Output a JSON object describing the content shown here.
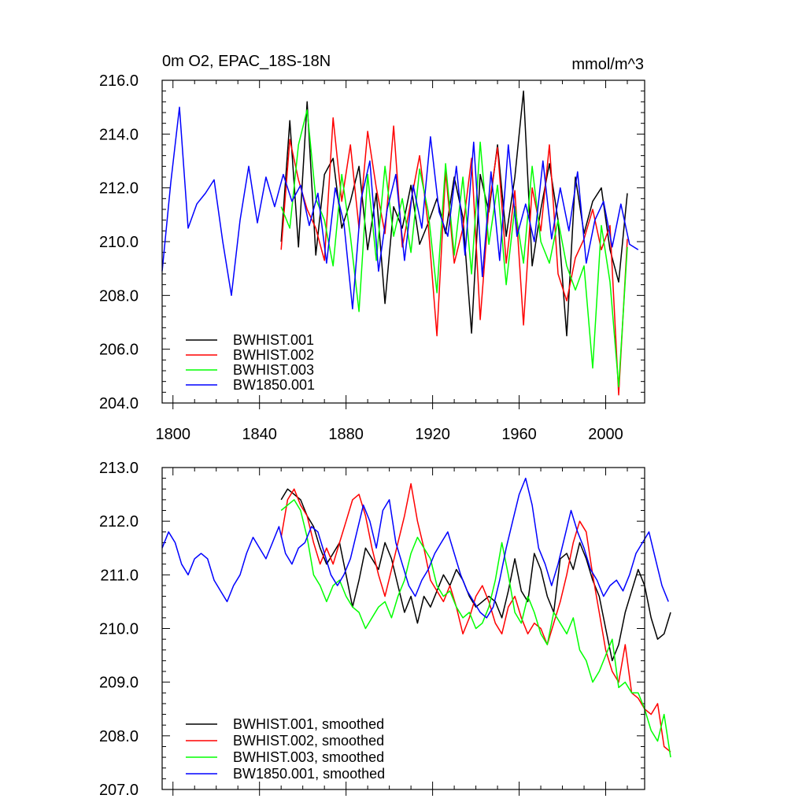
{
  "chart_data": [
    {
      "type": "line",
      "title": "0m O2, EPAC_18S-18N",
      "units_label": "mmol/m^3",
      "xlim": [
        1795,
        2018
      ],
      "ylim": [
        204,
        216
      ],
      "x_ticks": [
        1800,
        1840,
        1880,
        1920,
        1960,
        2000
      ],
      "x_tick_labels": [
        "1800",
        "1840",
        "1880",
        "1920",
        "1960",
        "2000"
      ],
      "y_ticks": [
        204,
        206,
        208,
        210,
        212,
        214,
        216
      ],
      "y_tick_labels": [
        "204.0",
        "206.0",
        "208.0",
        "210.0",
        "212.0",
        "214.0",
        "216.0"
      ],
      "legend_position": "bottom-left",
      "series": [
        {
          "name": "BWHIST.001",
          "color": "#000000",
          "x_start": 1850,
          "x_step": 4,
          "values": [
            210.0,
            214.5,
            209.8,
            215.2,
            209.5,
            212.5,
            213.1,
            210.5,
            211.5,
            212.8,
            209.7,
            211.8,
            207.7,
            211.3,
            210.5,
            212.1,
            209.9,
            210.7,
            211.6,
            210.3,
            212.4,
            210.9,
            206.6,
            212.5,
            211.1,
            213.6,
            210.2,
            212.4,
            215.6,
            209.1,
            211.2,
            212.9,
            210.8,
            206.5,
            212.4,
            210.3,
            211.5,
            212.0,
            209.7,
            208.5,
            211.8
          ]
        },
        {
          "name": "BWHIST.002",
          "color": "#ff0000",
          "x_start": 1850,
          "x_step": 4,
          "values": [
            209.7,
            213.8,
            212.3,
            211.2,
            210.5,
            209.3,
            214.6,
            211.5,
            213.6,
            210.5,
            214.1,
            212.0,
            210.3,
            214.3,
            209.8,
            211.5,
            213.2,
            210.6,
            206.5,
            212.6,
            209.2,
            210.5,
            213.1,
            207.1,
            211.3,
            213.5,
            209.2,
            211.9,
            206.9,
            212.0,
            210.4,
            213.6,
            208.8,
            207.8,
            209.4,
            210.1,
            211.2,
            209.7,
            210.6,
            204.3,
            210.1
          ]
        },
        {
          "name": "BWHIST.003",
          "color": "#00ff00",
          "x_start": 1850,
          "x_step": 4,
          "values": [
            211.3,
            210.5,
            213.6,
            214.9,
            211.6,
            210.8,
            209.1,
            212.5,
            210.2,
            207.4,
            212.5,
            209.3,
            212.8,
            210.2,
            211.6,
            209.6,
            212.7,
            211.1,
            208.1,
            212.9,
            209.5,
            212.4,
            208.8,
            213.7,
            209.9,
            212.1,
            208.4,
            211.3,
            209.2,
            212.8,
            210.0,
            209.2,
            210.8,
            209.1,
            208.2,
            209.1,
            205.3,
            210.6,
            208.5,
            204.6,
            209.8
          ]
        },
        {
          "name": "BW1850.001",
          "color": "#0000ff",
          "x_start": 1795,
          "x_step": 4,
          "values": [
            208.9,
            212.2,
            215.0,
            210.5,
            211.4,
            211.8,
            212.3,
            210.0,
            208.0,
            210.8,
            212.8,
            210.7,
            212.4,
            211.3,
            212.5,
            211.5,
            212.1,
            210.6,
            211.8,
            209.2,
            212.0,
            210.7,
            207.5,
            211.6,
            213.0,
            208.9,
            211.2,
            212.5,
            209.3,
            212.1,
            210.5,
            213.9,
            211.1,
            210.2,
            212.8,
            209.5,
            213.7,
            208.7,
            212.6,
            209.3,
            213.6,
            210.2,
            211.4,
            210.0,
            213.0,
            210.1,
            212.0,
            210.4,
            212.6,
            209.2,
            210.8,
            211.5,
            209.8,
            211.4,
            209.9,
            209.7
          ]
        }
      ]
    },
    {
      "type": "line",
      "title": "",
      "xlim": [
        1795,
        2018
      ],
      "ylim": [
        207,
        213
      ],
      "x_ticks": [
        1800,
        1840,
        1880,
        1920,
        1960,
        2000
      ],
      "x_tick_labels": [
        "",
        "",
        "",
        "",
        "",
        ""
      ],
      "y_ticks": [
        207,
        208,
        209,
        210,
        211,
        212,
        213
      ],
      "y_tick_labels": [
        "207.0",
        "208.0",
        "209.0",
        "210.0",
        "211.0",
        "212.0",
        "213.0"
      ],
      "legend_position": "bottom-left",
      "series": [
        {
          "name": "BWHIST.001, smoothed",
          "color": "#000000",
          "x_start": 1850,
          "x_step": 3,
          "values": [
            212.4,
            212.6,
            212.5,
            212.4,
            212.1,
            211.9,
            211.5,
            211.2,
            211.4,
            211.6,
            211.0,
            210.4,
            210.9,
            211.5,
            211.3,
            211.1,
            211.6,
            211.3,
            210.8,
            210.3,
            210.6,
            210.1,
            210.6,
            210.4,
            210.7,
            211.0,
            210.8,
            211.1,
            210.9,
            210.6,
            210.4,
            210.5,
            210.6,
            210.5,
            210.2,
            210.7,
            211.3,
            210.7,
            210.5,
            211.4,
            211.1,
            210.6,
            210.3,
            211.3,
            211.4,
            211.1,
            211.6,
            211.3,
            210.9,
            210.6,
            210.0,
            209.4,
            209.7,
            210.3,
            210.7,
            211.1,
            210.8,
            210.2,
            209.8,
            209.9,
            210.3
          ]
        },
        {
          "name": "BWHIST.002, smoothed",
          "color": "#ff0000",
          "x_start": 1850,
          "x_step": 3,
          "values": [
            211.7,
            212.4,
            212.6,
            212.3,
            212.1,
            211.6,
            211.2,
            211.5,
            211.2,
            211.6,
            212.0,
            212.4,
            212.5,
            212.1,
            211.5,
            211.0,
            210.6,
            211.1,
            211.6,
            212.1,
            212.7,
            212.0,
            211.5,
            210.9,
            210.7,
            210.5,
            210.8,
            210.4,
            209.9,
            210.2,
            210.6,
            210.8,
            210.5,
            210.1,
            209.9,
            210.4,
            210.6,
            210.2,
            209.9,
            210.1,
            210.0,
            209.7,
            210.1,
            210.5,
            211.0,
            211.6,
            212.0,
            211.8,
            211.0,
            210.3,
            209.6,
            209.2,
            209.0,
            209.7,
            208.8,
            208.7,
            208.5,
            208.4,
            208.6,
            207.8,
            207.7
          ]
        },
        {
          "name": "BWHIST.003, smoothed",
          "color": "#00ff00",
          "x_start": 1850,
          "x_step": 3,
          "values": [
            212.2,
            212.3,
            212.4,
            212.2,
            211.7,
            211.0,
            210.8,
            210.5,
            210.8,
            210.9,
            210.6,
            210.4,
            210.3,
            210.0,
            210.2,
            210.4,
            210.5,
            210.2,
            210.6,
            210.9,
            211.4,
            211.7,
            211.5,
            211.3,
            210.8,
            210.6,
            210.7,
            210.4,
            210.2,
            210.3,
            210.0,
            210.1,
            210.4,
            210.9,
            211.6,
            211.0,
            210.3,
            210.1,
            210.6,
            210.3,
            209.9,
            209.7,
            210.3,
            210.1,
            209.9,
            210.2,
            209.6,
            209.4,
            209.0,
            209.2,
            209.5,
            209.8,
            208.9,
            209.0,
            208.8,
            208.8,
            208.5,
            208.1,
            207.9,
            208.4,
            207.6
          ]
        },
        {
          "name": "BW1850.001, smoothed",
          "color": "#0000ff",
          "x_start": 1795,
          "x_step": 3,
          "values": [
            211.5,
            211.8,
            211.6,
            211.2,
            211.0,
            211.3,
            211.4,
            211.3,
            210.9,
            210.7,
            210.5,
            210.8,
            211.0,
            211.4,
            211.7,
            211.5,
            211.3,
            211.6,
            211.9,
            211.4,
            211.2,
            211.5,
            211.6,
            211.9,
            211.8,
            211.4,
            211.0,
            210.8,
            211.0,
            211.3,
            211.8,
            212.3,
            212.0,
            211.5,
            212.2,
            212.4,
            211.6,
            211.2,
            210.8,
            210.6,
            210.9,
            211.1,
            211.4,
            211.6,
            211.8,
            211.4,
            211.0,
            210.7,
            210.5,
            210.3,
            210.2,
            210.4,
            210.9,
            211.5,
            212.0,
            212.5,
            212.8,
            212.3,
            211.5,
            211.2,
            210.8,
            211.2,
            211.7,
            212.2,
            211.8,
            211.5,
            211.1,
            210.9,
            210.6,
            210.8,
            210.9,
            210.7,
            211.0,
            211.4,
            211.6,
            211.8,
            211.3,
            210.8,
            210.5
          ]
        }
      ]
    }
  ]
}
